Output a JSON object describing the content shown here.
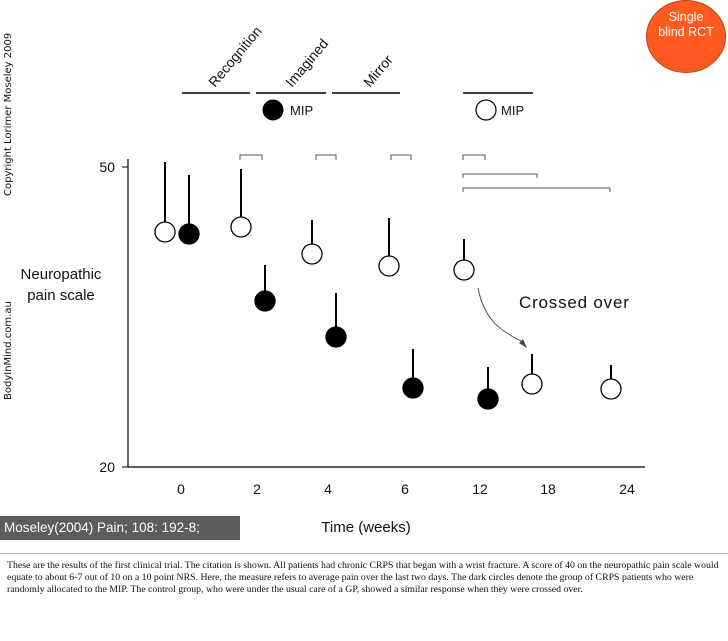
{
  "sidebar": {
    "copyright": "Copyright Lorimer Moseley 2009",
    "website": "BodyInMind.com.au"
  },
  "badge": {
    "line1": "Single",
    "line2": "blind RCT"
  },
  "citation": "Moseley(2004) Pain; 108: 192-8;",
  "caption": "These are the results of the first clinical trial. The citation is shown. All patients had chronic CRPS that began with a wrist fracture.  A score of 40 on the neuropathic pain scale would equate to about 6-7 out of 10 on a 10 point NRS.  Here, the measure refers to average pain over the last two days.  The dark circles denote the group of CRPS patients who were randomly allocated to the MIP. The control group, who were under the usual care of a GP, showed a similar response when they were crossed over.",
  "colors": {
    "filled": "#000000",
    "open": "#ffffff",
    "badge": "#ff5a1f"
  },
  "chart_data": {
    "type": "scatter",
    "ylabel_line1": "Neuropathic",
    "ylabel_line2": "pain scale",
    "xlabel": "Time (weeks)",
    "ylim": [
      20,
      50
    ],
    "y_ticks": [
      "50",
      "20"
    ],
    "x_ticks": [
      "0",
      "2",
      "4",
      "6",
      "12",
      "18",
      "24"
    ],
    "phases": [
      "Recognition",
      "Imagined",
      "Mirror"
    ],
    "legend": {
      "filled": "MIP",
      "open": "MIP"
    },
    "annotation": "Crossed over",
    "series": [
      {
        "marker": "open",
        "points": [
          {
            "x": "0",
            "y": 43.5,
            "err": 7.0
          },
          {
            "x": "2",
            "y": 44.0,
            "err": 5.8
          },
          {
            "x": "4",
            "y": 41.3,
            "err": 3.4
          },
          {
            "x": "6",
            "y": 40.1,
            "err": 4.8
          },
          {
            "x": "12",
            "y": 39.7,
            "err": 3.1
          },
          {
            "x": "18",
            "y": 28.3,
            "err": 3.0
          },
          {
            "x": "24",
            "y": 27.8,
            "err": 2.4
          }
        ]
      },
      {
        "marker": "filled",
        "points": [
          {
            "x": "0",
            "y": 43.3,
            "err": 5.9
          },
          {
            "x": "2",
            "y": 36.6,
            "err": 3.6
          },
          {
            "x": "4",
            "y": 33.0,
            "err": 4.4
          },
          {
            "x": "6",
            "y": 27.9,
            "err": 3.9
          },
          {
            "x": "12",
            "y": 26.8,
            "err": 3.2
          }
        ]
      }
    ]
  }
}
